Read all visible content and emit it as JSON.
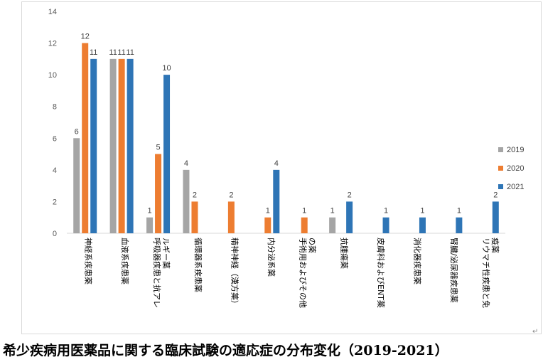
{
  "chart_data": {
    "type": "bar",
    "title": "",
    "xlabel": "",
    "ylabel": "",
    "ylim": [
      0,
      14
    ],
    "yticks": [
      0,
      2,
      4,
      6,
      8,
      10,
      12,
      14
    ],
    "grid": false,
    "legend_position": "right",
    "categories": [
      [
        "神経系疾患薬"
      ],
      [
        "血液系疾患薬"
      ],
      [
        "呼吸器疾患と抗アレ",
        "ルギー薬"
      ],
      [
        "循環器系疾患薬"
      ],
      [
        "精神神経（漢方薬）"
      ],
      [
        "内分泌系薬"
      ],
      [
        "手術用およびその他",
        "の薬"
      ],
      [
        "抗腫瘍薬"
      ],
      [
        "皮膚科およびENT薬"
      ],
      [
        "消化器疾患薬"
      ],
      [
        "腎臓/泌尿器疾患薬"
      ],
      [
        "リウマチ性疾患と免",
        "疫薬"
      ]
    ],
    "series": [
      {
        "name": "2019",
        "color": "#a5a5a5",
        "values": [
          6,
          11,
          1,
          4,
          0,
          0,
          0,
          1,
          0,
          0,
          0,
          0
        ]
      },
      {
        "name": "2020",
        "color": "#ed7d31",
        "values": [
          12,
          11,
          5,
          2,
          2,
          1,
          1,
          0,
          0,
          0,
          0,
          0
        ]
      },
      {
        "name": "2021",
        "color": "#2e75b6",
        "values": [
          11,
          11,
          10,
          0,
          0,
          4,
          0,
          2,
          1,
          1,
          1,
          2
        ]
      }
    ]
  },
  "caption": "希少疾病用医薬品に関する臨床試験の適応症の分布変化（2019-2021）",
  "return_mark": "↵"
}
